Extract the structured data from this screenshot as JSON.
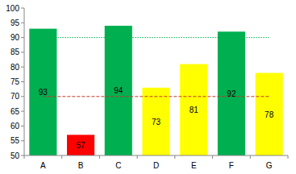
{
  "chart_data": {
    "type": "bar",
    "categories": [
      "A",
      "B",
      "C",
      "D",
      "E",
      "F",
      "G"
    ],
    "values": [
      93,
      57,
      94,
      73,
      81,
      92,
      78
    ],
    "colors": [
      "#00b050",
      "#ff0000",
      "#00b050",
      "#ffff00",
      "#ffff00",
      "#00b050",
      "#ffff00"
    ],
    "ylim": [
      50,
      100
    ],
    "yticks": [
      50,
      55,
      60,
      65,
      70,
      75,
      80,
      85,
      90,
      95,
      100
    ],
    "grid": false,
    "data_labels": true,
    "reference_lines": [
      {
        "value": 90,
        "color": "#00b050",
        "line_style": "dotted"
      },
      {
        "value": 70,
        "color": "#c0392b",
        "line_style": "dashed"
      }
    ]
  }
}
